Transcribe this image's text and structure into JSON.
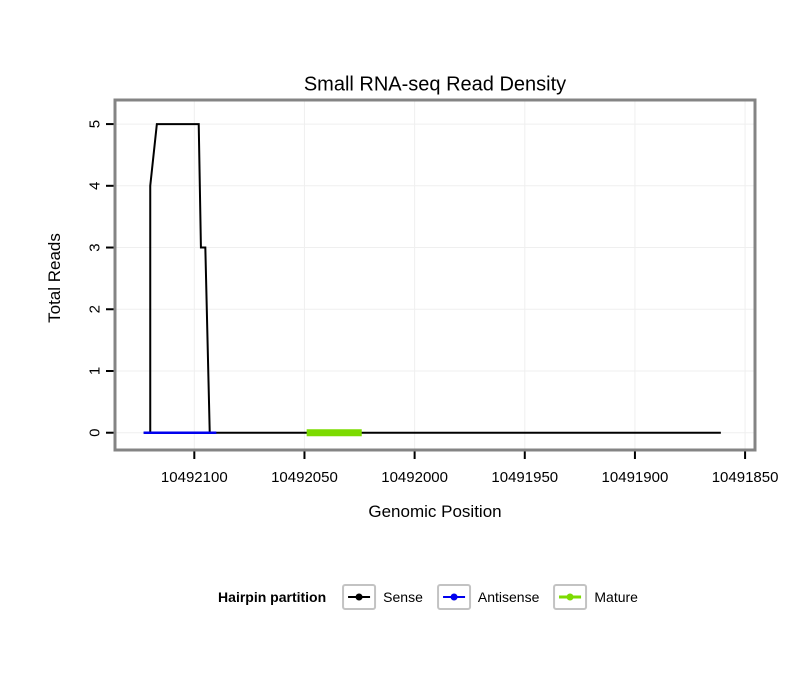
{
  "chart_data": {
    "type": "line",
    "title": "Small RNA-seq Read Density",
    "xlabel": "Genomic Position",
    "ylabel": "Total Reads",
    "xlim": [
      10492136,
      10491845.5
    ],
    "ylim": [
      -0.28,
      5.39
    ],
    "x_ticks": [
      10492100,
      10492050,
      10492000,
      10491950,
      10491900,
      10491850
    ],
    "y_ticks": [
      0,
      1,
      2,
      3,
      4,
      5
    ],
    "x_axis_reversed": true,
    "grid": true,
    "style": {
      "panel_border": "#848484",
      "grid_color": "#efefef",
      "tick_color": "#000000",
      "panel_fill": "#ffffff"
    },
    "series": [
      {
        "name": "Sense",
        "color": "#000000",
        "width": 2,
        "points": [
          [
            10492123,
            0
          ],
          [
            10492120,
            0
          ],
          [
            10492120,
            4
          ],
          [
            10492117,
            5
          ],
          [
            10492098,
            5
          ],
          [
            10492097,
            3
          ],
          [
            10492095,
            3
          ],
          [
            10492093,
            0
          ],
          [
            10491861,
            0
          ]
        ]
      },
      {
        "name": "Antisense",
        "color": "#0000EE",
        "width": 2.5,
        "points": [
          [
            10492123,
            0
          ],
          [
            10492090,
            0
          ]
        ]
      },
      {
        "name": "Mature",
        "color": "#7CDB00",
        "width": 7,
        "points": [
          [
            10492049,
            0
          ],
          [
            10492024,
            0
          ]
        ]
      }
    ],
    "legend": {
      "title": "Hairpin partition",
      "position": "bottom",
      "items": [
        {
          "label": "Sense",
          "color": "#000000"
        },
        {
          "label": "Antisense",
          "color": "#0000EE"
        },
        {
          "label": "Mature",
          "color": "#7CDB00"
        }
      ]
    }
  }
}
